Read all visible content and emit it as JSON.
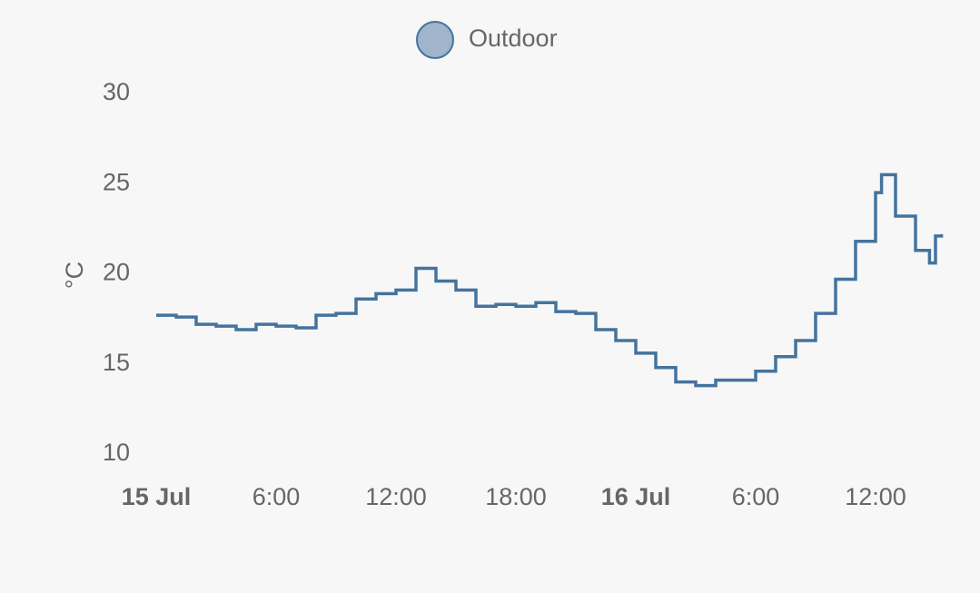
{
  "chart_data": {
    "type": "line",
    "y_label": "°C",
    "x": [
      0,
      1,
      2,
      3,
      4,
      5,
      6,
      7,
      8,
      9,
      10,
      11,
      12,
      13,
      14,
      15,
      16,
      17,
      18,
      19,
      20,
      21,
      22,
      23,
      24,
      25,
      26,
      27,
      28,
      29,
      30,
      31,
      32,
      33,
      34,
      35,
      36,
      36.3,
      37,
      38,
      38.7,
      39,
      39.3
    ],
    "series": [
      {
        "name": "Outdoor",
        "color": "#44739e",
        "values": [
          17.7,
          17.6,
          17.2,
          17.1,
          16.9,
          17.2,
          17.1,
          17.0,
          17.7,
          17.8,
          18.6,
          18.9,
          19.1,
          20.3,
          19.6,
          19.1,
          18.2,
          18.3,
          18.2,
          18.4,
          17.9,
          17.8,
          16.9,
          16.3,
          15.6,
          14.8,
          14.0,
          13.8,
          14.1,
          14.1,
          14.6,
          15.4,
          16.3,
          17.8,
          19.7,
          21.8,
          24.5,
          25.5,
          23.2,
          21.3,
          20.6,
          22.1,
          22.2
        ]
      }
    ],
    "xlim": [
      0,
      39.5
    ],
    "xticks": [
      {
        "value": 0,
        "label": "15 Jul"
      },
      {
        "value": 6,
        "label": "6:00"
      },
      {
        "value": 12,
        "label": "12:00"
      },
      {
        "value": 18,
        "label": "18:00"
      },
      {
        "value": 24,
        "label": "16 Jul"
      },
      {
        "value": 30,
        "label": "6:00"
      },
      {
        "value": 36,
        "label": "12:00"
      }
    ],
    "ylim": [
      10,
      30
    ],
    "yticks": [
      10,
      15,
      20,
      25,
      30
    ],
    "grid": false
  }
}
